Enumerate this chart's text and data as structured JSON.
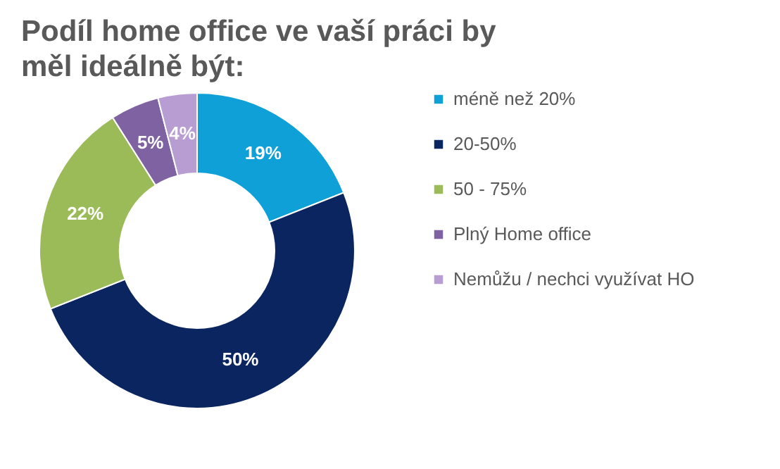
{
  "chart_data": {
    "type": "donut",
    "title": "Podíl home office ve vaší práci by měl ideálně být:",
    "categories": [
      "méně než 20%",
      "20-50%",
      "50 - 75%",
      "Plný Home office",
      "Nemůžu / nechci využívat HO"
    ],
    "values": [
      19,
      50,
      22,
      5,
      4
    ],
    "colors": [
      "#0fa0d8",
      "#0b2560",
      "#9bbb59",
      "#7e62a1",
      "#b79dd1"
    ],
    "value_labels": [
      "19%",
      "50%",
      "22%",
      "5%",
      "4%"
    ],
    "legend": "right"
  }
}
